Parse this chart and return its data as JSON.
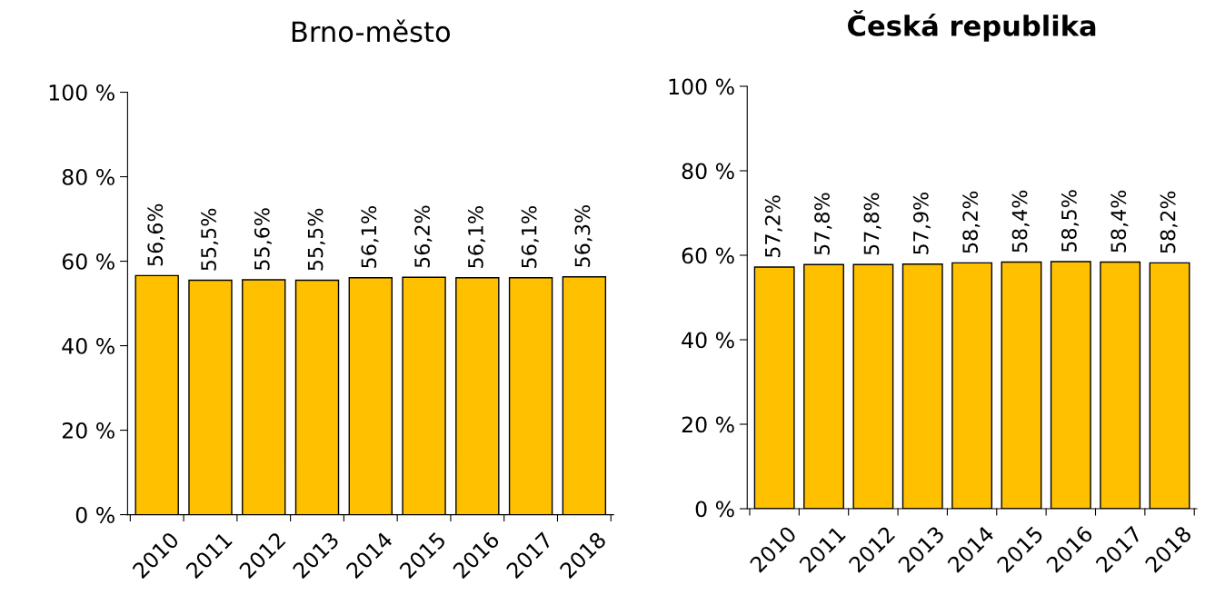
{
  "chart_data": [
    {
      "type": "bar",
      "title": "Brno-město",
      "categories": [
        "2010",
        "2011",
        "2012",
        "2013",
        "2014",
        "2015",
        "2016",
        "2017",
        "2018"
      ],
      "values": [
        56.6,
        55.5,
        55.6,
        55.5,
        56.1,
        56.2,
        56.1,
        56.1,
        56.3
      ],
      "value_labels": [
        "56,6%",
        "55,5%",
        "55,6%",
        "55,5%",
        "56,1%",
        "56,2%",
        "56,1%",
        "56,1%",
        "56,3%"
      ],
      "color": "#ffc000",
      "ylim": [
        0,
        100
      ],
      "yticks": [
        {
          "value": 0,
          "label": "0 %"
        },
        {
          "value": 20,
          "label": "20 %"
        },
        {
          "value": 40,
          "label": "40 %"
        },
        {
          "value": 60,
          "label": "60 %"
        },
        {
          "value": 80,
          "label": "80 %"
        },
        {
          "value": 100,
          "label": "100 %"
        }
      ],
      "grid": false,
      "legend": false
    },
    {
      "type": "bar",
      "title": "Česká republika",
      "categories": [
        "2010",
        "2011",
        "2012",
        "2013",
        "2014",
        "2015",
        "2016",
        "2017",
        "2018"
      ],
      "values": [
        57.2,
        57.8,
        57.8,
        57.9,
        58.2,
        58.4,
        58.5,
        58.4,
        58.2
      ],
      "value_labels": [
        "57,2%",
        "57,8%",
        "57,8%",
        "57,9%",
        "58,2%",
        "58,4%",
        "58,5%",
        "58,4%",
        "58,2%"
      ],
      "color": "#ffc000",
      "ylim": [
        0,
        100
      ],
      "yticks": [
        {
          "value": 0,
          "label": "0 %"
        },
        {
          "value": 20,
          "label": "20 %"
        },
        {
          "value": 40,
          "label": "40 %"
        },
        {
          "value": 60,
          "label": "60 %"
        },
        {
          "value": 80,
          "label": "80 %"
        },
        {
          "value": 100,
          "label": "100 %"
        }
      ],
      "grid": false,
      "legend": false
    }
  ]
}
